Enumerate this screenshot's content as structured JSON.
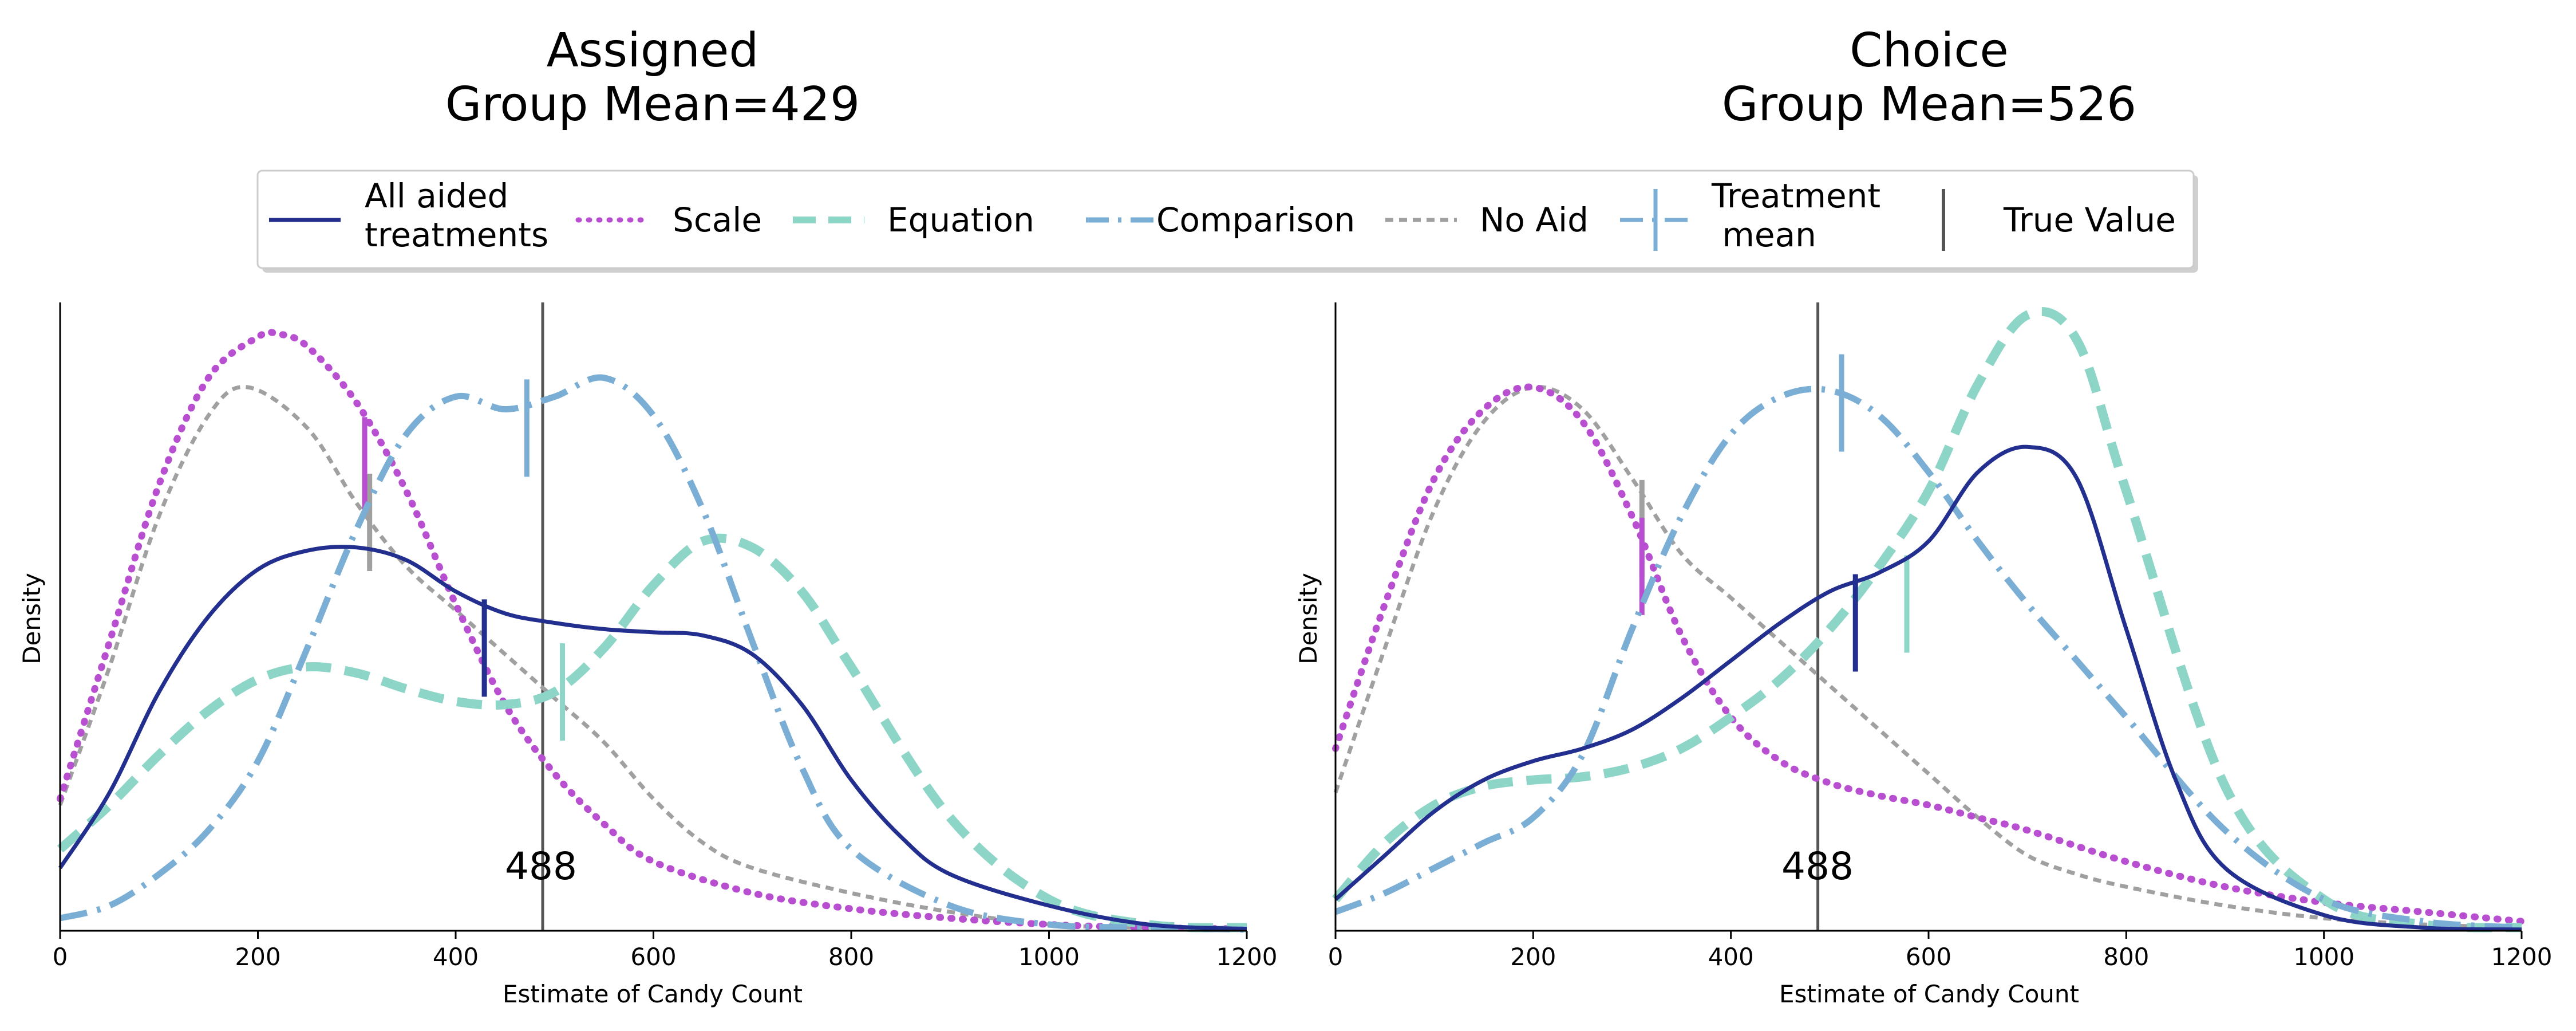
{
  "chart_data": [
    {
      "type": "line",
      "title_line1": "Assigned",
      "title_line2": "Group Mean=429",
      "xlabel": "Estimate of Candy Count",
      "ylabel": "Density",
      "xlim": [
        0,
        1200
      ],
      "ylim": [
        0,
        1.0
      ],
      "x_ticks": [
        "0",
        "200",
        "400",
        "600",
        "800",
        "1000",
        "1200"
      ],
      "true_value": 488,
      "true_value_label": "488",
      "series": [
        {
          "key": "no_aid",
          "x": [
            0,
            50,
            100,
            150,
            190,
            250,
            300,
            350,
            400,
            450,
            500,
            550,
            600,
            650,
            700,
            800,
            900,
            1000,
            1100,
            1200
          ],
          "y": [
            0.2,
            0.42,
            0.66,
            0.82,
            0.865,
            0.8,
            0.68,
            0.58,
            0.51,
            0.44,
            0.37,
            0.3,
            0.21,
            0.14,
            0.1,
            0.06,
            0.03,
            0.01,
            0.005,
            0.005
          ],
          "mean": 313,
          "mean_y": 0.65
        },
        {
          "key": "scale",
          "x": [
            0,
            50,
            100,
            150,
            200,
            220,
            250,
            300,
            350,
            400,
            450,
            500,
            550,
            600,
            700,
            800,
            900,
            1000,
            1100,
            1200
          ],
          "y": [
            0.21,
            0.46,
            0.71,
            0.88,
            0.945,
            0.95,
            0.93,
            0.84,
            0.7,
            0.52,
            0.36,
            0.25,
            0.17,
            0.11,
            0.06,
            0.035,
            0.02,
            0.01,
            0.005,
            0.003
          ],
          "mean": 308,
          "mean_y": 0.74
        },
        {
          "key": "equation",
          "x": [
            0,
            50,
            100,
            150,
            200,
            250,
            300,
            350,
            400,
            450,
            500,
            550,
            600,
            650,
            700,
            750,
            800,
            900,
            1000,
            1100,
            1200
          ],
          "y": [
            0.13,
            0.2,
            0.28,
            0.35,
            0.4,
            0.42,
            0.41,
            0.385,
            0.365,
            0.36,
            0.38,
            0.45,
            0.55,
            0.62,
            0.61,
            0.54,
            0.42,
            0.18,
            0.05,
            0.01,
            0.005
          ],
          "mean": 508,
          "mean_y": 0.38
        },
        {
          "key": "comparison",
          "x": [
            0,
            50,
            100,
            150,
            200,
            250,
            300,
            350,
            400,
            450,
            500,
            550,
            600,
            650,
            700,
            750,
            800,
            900,
            1000,
            1100,
            1200
          ],
          "y": [
            0.02,
            0.04,
            0.09,
            0.16,
            0.27,
            0.45,
            0.64,
            0.79,
            0.85,
            0.83,
            0.85,
            0.88,
            0.82,
            0.67,
            0.46,
            0.26,
            0.13,
            0.04,
            0.01,
            0.005,
            0.002
          ],
          "mean": 472,
          "mean_y": 0.8
        },
        {
          "key": "all",
          "x": [
            0,
            50,
            100,
            150,
            200,
            250,
            300,
            350,
            400,
            450,
            500,
            550,
            600,
            650,
            700,
            750,
            800,
            850,
            900,
            1000,
            1100,
            1200
          ],
          "y": [
            0.1,
            0.22,
            0.38,
            0.5,
            0.575,
            0.605,
            0.61,
            0.59,
            0.54,
            0.505,
            0.49,
            0.48,
            0.475,
            0.47,
            0.44,
            0.36,
            0.24,
            0.15,
            0.09,
            0.04,
            0.01,
            0.003
          ],
          "mean": 429,
          "mean_y": 0.45
        }
      ]
    },
    {
      "type": "line",
      "title_line1": "Choice",
      "title_line2": "Group Mean=526",
      "xlabel": "Estimate of Candy Count",
      "ylabel": "Density",
      "xlim": [
        0,
        1200
      ],
      "ylim": [
        0,
        1.0
      ],
      "x_ticks": [
        "0",
        "200",
        "400",
        "600",
        "800",
        "1000",
        "1200"
      ],
      "true_value": 488,
      "true_value_label": "488",
      "series": [
        {
          "key": "no_aid",
          "x": [
            0,
            50,
            100,
            150,
            200,
            250,
            300,
            350,
            400,
            450,
            500,
            550,
            600,
            650,
            700,
            750,
            800,
            900,
            1000,
            1100,
            1200
          ],
          "y": [
            0.22,
            0.45,
            0.67,
            0.81,
            0.865,
            0.83,
            0.72,
            0.6,
            0.53,
            0.46,
            0.39,
            0.32,
            0.25,
            0.18,
            0.12,
            0.09,
            0.07,
            0.04,
            0.02,
            0.01,
            0.005
          ],
          "mean": 310,
          "mean_y": 0.64
        },
        {
          "key": "scale",
          "x": [
            0,
            50,
            100,
            150,
            200,
            250,
            300,
            350,
            400,
            450,
            500,
            550,
            600,
            650,
            700,
            800,
            900,
            1000,
            1100,
            1200
          ],
          "y": [
            0.29,
            0.52,
            0.72,
            0.83,
            0.865,
            0.81,
            0.66,
            0.47,
            0.34,
            0.27,
            0.235,
            0.215,
            0.2,
            0.18,
            0.16,
            0.11,
            0.07,
            0.045,
            0.03,
            0.015
          ],
          "mean": 310,
          "mean_y": 0.58
        },
        {
          "key": "equation",
          "x": [
            0,
            50,
            100,
            150,
            200,
            250,
            300,
            350,
            400,
            450,
            500,
            550,
            600,
            650,
            700,
            750,
            800,
            900,
            1000,
            1100,
            1200
          ],
          "y": [
            0.05,
            0.14,
            0.2,
            0.23,
            0.24,
            0.245,
            0.26,
            0.29,
            0.34,
            0.4,
            0.48,
            0.58,
            0.7,
            0.87,
            0.98,
            0.94,
            0.7,
            0.23,
            0.05,
            0.01,
            0.005
          ],
          "mean": 578,
          "mean_y": 0.52
        },
        {
          "key": "comparison",
          "x": [
            0,
            50,
            100,
            150,
            200,
            250,
            300,
            350,
            400,
            450,
            500,
            550,
            600,
            650,
            700,
            750,
            800,
            900,
            1000,
            1100,
            1200
          ],
          "y": [
            0.03,
            0.06,
            0.1,
            0.14,
            0.18,
            0.28,
            0.48,
            0.66,
            0.79,
            0.85,
            0.86,
            0.82,
            0.73,
            0.62,
            0.52,
            0.43,
            0.34,
            0.16,
            0.05,
            0.015,
            0.005
          ],
          "mean": 512,
          "mean_y": 0.84
        },
        {
          "key": "all",
          "x": [
            0,
            50,
            100,
            150,
            200,
            250,
            300,
            350,
            400,
            450,
            500,
            550,
            600,
            650,
            700,
            750,
            800,
            850,
            900,
            1000,
            1100,
            1200
          ],
          "y": [
            0.05,
            0.12,
            0.19,
            0.24,
            0.27,
            0.29,
            0.32,
            0.37,
            0.43,
            0.49,
            0.54,
            0.57,
            0.62,
            0.73,
            0.77,
            0.72,
            0.48,
            0.24,
            0.1,
            0.025,
            0.005,
            0.002
          ],
          "mean": 526,
          "mean_y": 0.49
        }
      ]
    }
  ],
  "legend": {
    "items": [
      {
        "key": "all",
        "label_line1": "All aided",
        "label_line2": "treatments"
      },
      {
        "key": "scale",
        "label_line1": "Scale",
        "label_line2": ""
      },
      {
        "key": "equation",
        "label_line1": "Equation",
        "label_line2": ""
      },
      {
        "key": "comparison",
        "label_line1": "Comparison",
        "label_line2": ""
      },
      {
        "key": "no_aid",
        "label_line1": "No Aid",
        "label_line2": ""
      },
      {
        "key": "treatment_mean",
        "label_line1": "Treatment",
        "label_line2": " mean"
      },
      {
        "key": "true_value",
        "label_line1": "True Value",
        "label_line2": ""
      }
    ]
  },
  "colors": {
    "all": "#232f8e",
    "scale": "#b84fd0",
    "equation": "#8dd5c7",
    "comparison": "#7aaed4",
    "no_aid": "#a0a0a0",
    "treatment_mean": "#7aaed4",
    "true_value": "#555555"
  }
}
